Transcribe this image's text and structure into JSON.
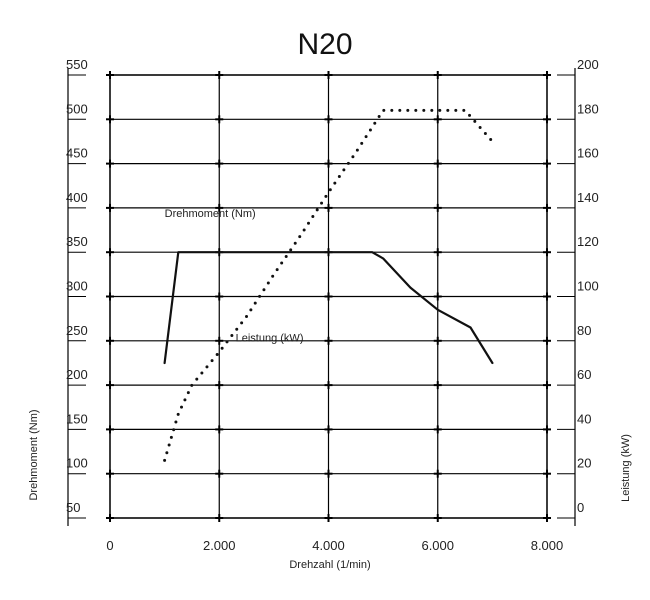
{
  "chart_data": {
    "type": "line",
    "title": "N20",
    "xlabel": "Drehzahl (1/min)",
    "ylabel_left": "Drehmoment (Nm)",
    "ylabel_right": "Leistung (kW)",
    "x_ticks": [
      "0",
      "2.000",
      "4.000",
      "6.000",
      "8.000"
    ],
    "x_tick_values": [
      0,
      2000,
      4000,
      6000,
      8000
    ],
    "xlim": [
      0,
      8000
    ],
    "y_left_ticks": [
      "50",
      "100",
      "150",
      "200",
      "250",
      "300",
      "350",
      "400",
      "450",
      "500",
      "550"
    ],
    "y_left_tick_values": [
      50,
      100,
      150,
      200,
      250,
      300,
      350,
      400,
      450,
      500,
      550
    ],
    "ylim_left": [
      50,
      550
    ],
    "y_right_ticks": [
      "0",
      "20",
      "40",
      "60",
      "80",
      "100",
      "120",
      "140",
      "160",
      "180",
      "200"
    ],
    "y_right_tick_values": [
      0,
      20,
      40,
      60,
      80,
      100,
      120,
      140,
      160,
      180,
      200
    ],
    "ylim_right": [
      0,
      200
    ],
    "grid": true,
    "colors": {
      "grid": "#000000",
      "series": "#111111"
    },
    "series": [
      {
        "name": "Drehmoment (Nm)",
        "axis": "left",
        "style": "solid",
        "label_at": [
          1000,
          390
        ],
        "x": [
          1000,
          1250,
          1500,
          2000,
          3000,
          4000,
          4800,
          5000,
          5500,
          6000,
          6600,
          7000
        ],
        "y": [
          225,
          350,
          350,
          350,
          350,
          350,
          350,
          343,
          310,
          285,
          265,
          225
        ]
      },
      {
        "name": "Leistung (kW)",
        "axis": "right",
        "style": "dotted",
        "label_at": [
          2300,
          249
        ],
        "x": [
          1000,
          1250,
          1500,
          2000,
          2500,
          3000,
          3500,
          4000,
          4500,
          5000,
          5500,
          6000,
          6500,
          7000
        ],
        "y": [
          26,
          47,
          60,
          75,
          91,
          110,
          128,
          147,
          165,
          184,
          184,
          184,
          184,
          170
        ]
      }
    ]
  }
}
